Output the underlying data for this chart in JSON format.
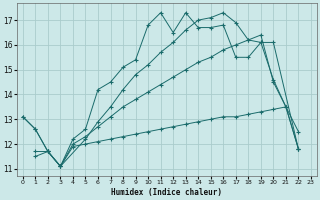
{
  "background_color": "#cce8e8",
  "grid_color": "#aacccc",
  "line_color": "#1a6b6b",
  "xlabel": "Humidex (Indice chaleur)",
  "xlim": [
    -0.5,
    23.5
  ],
  "ylim": [
    10.7,
    17.7
  ],
  "yticks": [
    11,
    12,
    13,
    14,
    15,
    16,
    17
  ],
  "xticks": [
    0,
    1,
    2,
    3,
    4,
    5,
    6,
    7,
    8,
    9,
    10,
    11,
    12,
    13,
    14,
    15,
    16,
    17,
    18,
    19,
    20,
    21,
    22,
    23
  ],
  "line1_x": [
    0,
    1,
    2,
    3,
    4,
    5,
    6,
    7,
    8,
    9,
    10,
    11,
    12,
    13,
    14,
    15,
    16,
    17,
    18,
    19,
    20,
    21,
    22
  ],
  "line1_y": [
    13.1,
    12.6,
    11.7,
    11.1,
    12.2,
    12.6,
    14.2,
    14.5,
    15.1,
    15.4,
    16.8,
    17.3,
    16.5,
    17.3,
    16.7,
    16.7,
    16.8,
    15.5,
    15.5,
    16.1,
    14.6,
    13.5,
    12.5
  ],
  "line2_x": [
    0,
    1,
    2,
    3,
    5,
    6,
    7,
    8,
    9,
    10,
    11,
    12,
    13,
    14,
    15,
    16,
    17,
    18,
    19,
    20,
    22
  ],
  "line2_y": [
    13.1,
    12.6,
    11.7,
    11.1,
    12.2,
    12.9,
    13.5,
    14.2,
    14.8,
    15.2,
    15.7,
    16.1,
    16.6,
    17.0,
    17.1,
    17.3,
    16.9,
    16.2,
    16.1,
    16.1,
    11.8
  ],
  "line3_x": [
    1,
    2,
    3,
    4,
    5,
    6,
    7,
    8,
    9,
    10,
    11,
    12,
    13,
    14,
    15,
    16,
    17,
    18,
    19,
    20,
    21,
    22
  ],
  "line3_y": [
    11.7,
    11.7,
    11.1,
    12.0,
    12.3,
    12.7,
    13.1,
    13.5,
    13.8,
    14.1,
    14.4,
    14.7,
    15.0,
    15.3,
    15.5,
    15.8,
    16.0,
    16.2,
    16.4,
    14.5,
    13.5,
    11.8
  ],
  "line4_x": [
    1,
    2,
    3,
    4,
    5,
    6,
    7,
    8,
    9,
    10,
    11,
    12,
    13,
    14,
    15,
    16,
    17,
    18,
    19,
    20,
    21,
    22
  ],
  "line4_y": [
    11.5,
    11.7,
    11.1,
    11.9,
    12.0,
    12.1,
    12.2,
    12.3,
    12.4,
    12.5,
    12.6,
    12.7,
    12.8,
    12.9,
    13.0,
    13.1,
    13.1,
    13.2,
    13.3,
    13.4,
    13.5,
    11.8
  ]
}
